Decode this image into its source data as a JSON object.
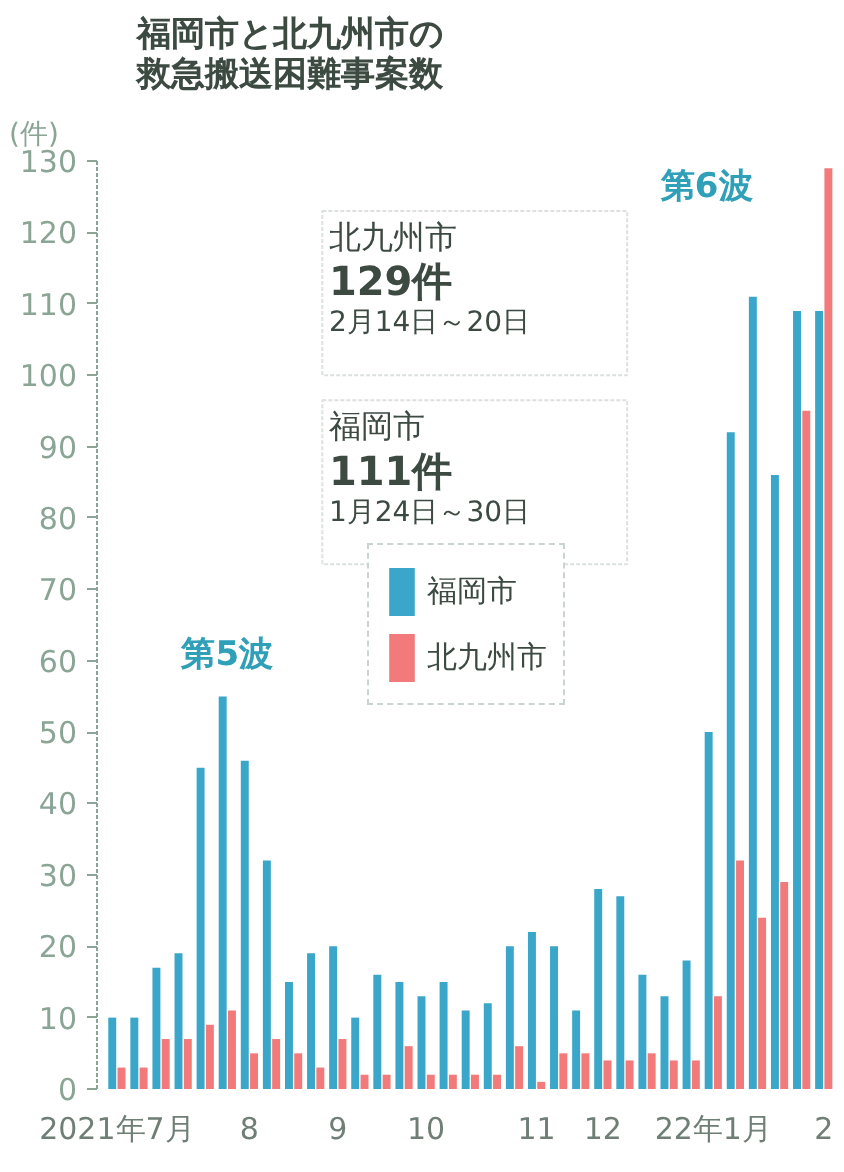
{
  "chart_data": {
    "type": "bar",
    "title": "福岡市と北九州市の救急搬送困難事案数",
    "ylabel": "(件)",
    "categories": [
      "2021年7月",
      null,
      null,
      null,
      null,
      null,
      "8",
      null,
      null,
      null,
      "9",
      null,
      null,
      null,
      "10",
      null,
      null,
      null,
      null,
      "11",
      null,
      null,
      "12",
      null,
      null,
      null,
      null,
      "22年1月",
      null,
      null,
      null,
      null,
      "2"
    ],
    "series": [
      {
        "name": "福岡市",
        "color": "#3aa6c9",
        "values": [
          10,
          10,
          17,
          19,
          45,
          55,
          46,
          32,
          15,
          19,
          20,
          10,
          16,
          15,
          13,
          15,
          11,
          12,
          20,
          22,
          20,
          11,
          28,
          27,
          16,
          13,
          18,
          50,
          92,
          111,
          86,
          109,
          109
        ]
      },
      {
        "name": "北九州市",
        "color": "#f27a7a",
        "values": [
          3,
          3,
          7,
          7,
          9,
          11,
          5,
          7,
          5,
          3,
          7,
          2,
          2,
          6,
          2,
          2,
          2,
          2,
          6,
          1,
          5,
          5,
          4,
          4,
          5,
          4,
          4,
          13,
          32,
          24,
          29,
          95,
          129
        ]
      }
    ],
    "ylim": [
      0,
      130
    ],
    "yticks": [
      0,
      10,
      20,
      30,
      40,
      50,
      60,
      70,
      80,
      90,
      100,
      110,
      120,
      130
    ],
    "grid": false,
    "legend": "center",
    "annotations": [
      "第5波",
      "第6波",
      "北九州市\n129件\n2月14日～20日",
      "福岡市\n111件\n1月24日～30日"
    ]
  }
}
